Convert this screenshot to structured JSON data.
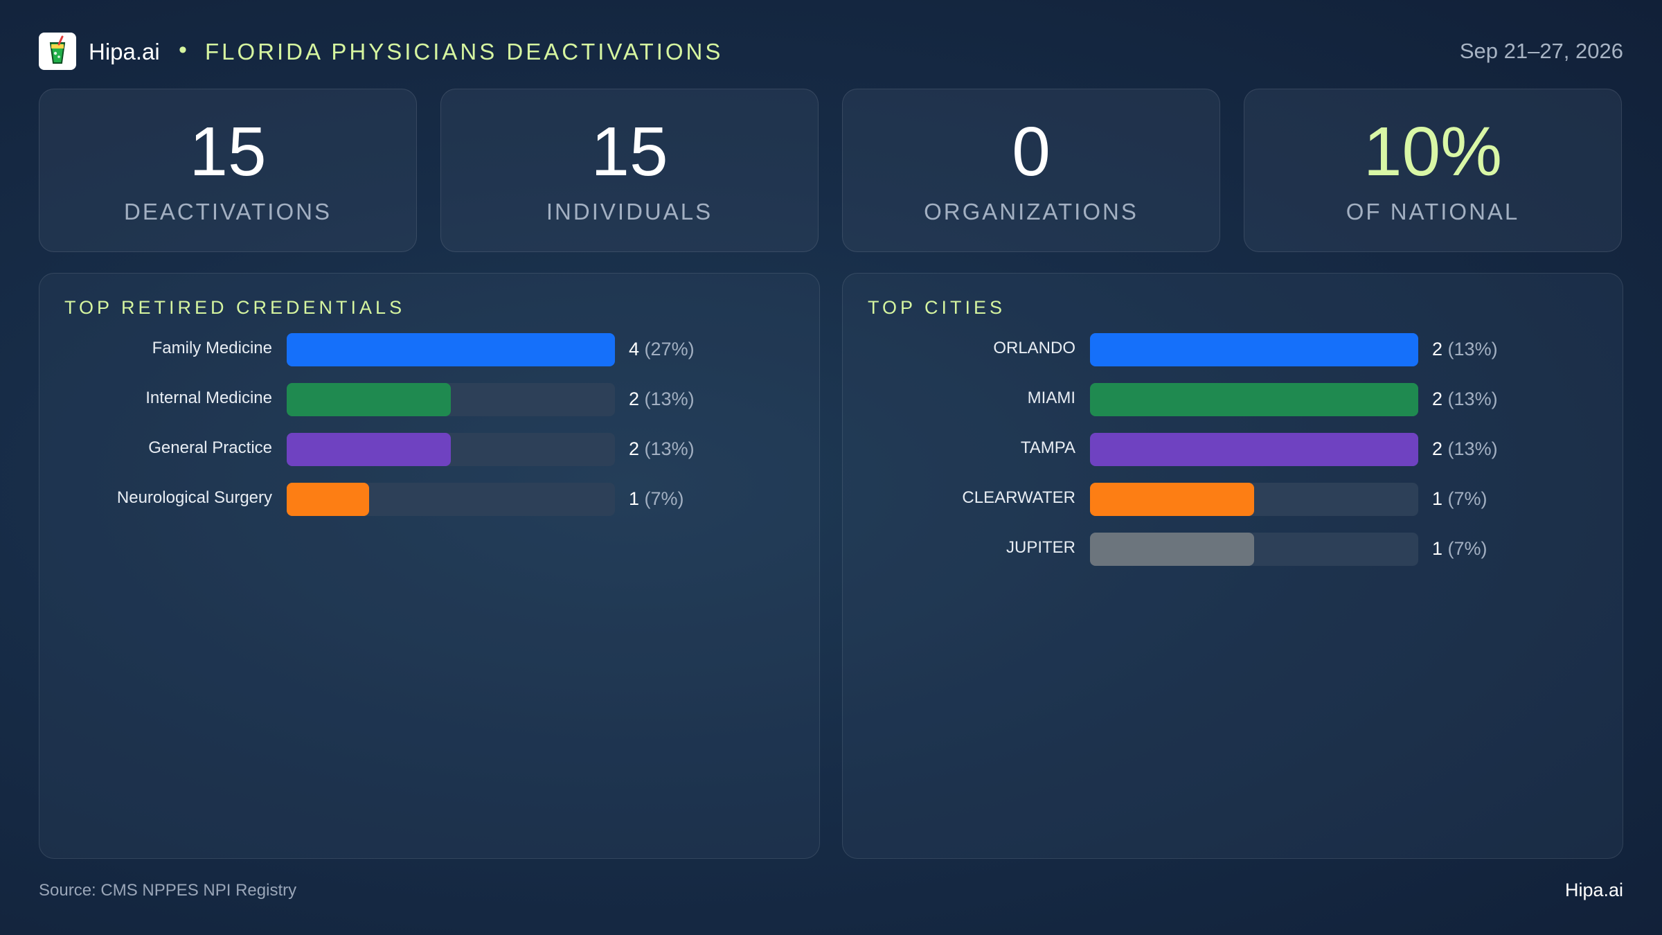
{
  "header": {
    "brand": "Hipa.ai",
    "separator": "•",
    "title": "FLORIDA PHYSICIANS DEACTIVATIONS",
    "date_range": "Sep 21–27, 2026",
    "logo_icon": "glass-with-straw-icon"
  },
  "kpis": [
    {
      "value": "15",
      "label": "DEACTIVATIONS"
    },
    {
      "value": "15",
      "label": "INDIVIDUALS"
    },
    {
      "value": "0",
      "label": "ORGANIZATIONS"
    },
    {
      "value": "10%",
      "label": "OF NATIONAL"
    }
  ],
  "colors": {
    "accent": "#d6f5a0",
    "blue": "#1570fa",
    "green": "#1f8a50",
    "purple": "#6f42c1",
    "orange": "#fd7e14",
    "gray": "#6c757d"
  },
  "chart_data": [
    {
      "type": "bar",
      "orientation": "horizontal",
      "title": "TOP RETIRED CREDENTIALS",
      "categories": [
        "Family Medicine",
        "Internal Medicine",
        "General Practice",
        "Neurological Surgery"
      ],
      "values": [
        4,
        2,
        2,
        1
      ],
      "percent_labels": [
        "(27%)",
        "(13%)",
        "(13%)",
        "(7%)"
      ],
      "xlim": [
        0,
        4
      ],
      "colors": [
        "#1570fa",
        "#1f8a50",
        "#6f42c1",
        "#fd7e14"
      ]
    },
    {
      "type": "bar",
      "orientation": "horizontal",
      "title": "TOP CITIES",
      "categories": [
        "ORLANDO",
        "MIAMI",
        "TAMPA",
        "CLEARWATER",
        "JUPITER"
      ],
      "values": [
        2,
        2,
        2,
        1,
        1
      ],
      "percent_labels": [
        "(13%)",
        "(13%)",
        "(13%)",
        "(7%)",
        "(7%)"
      ],
      "xlim": [
        0,
        2
      ],
      "colors": [
        "#1570fa",
        "#1f8a50",
        "#6f42c1",
        "#fd7e14",
        "#6c757d"
      ]
    }
  ],
  "footer": {
    "source": "Source: CMS NPPES NPI Registry",
    "brand": "Hipa.ai"
  }
}
